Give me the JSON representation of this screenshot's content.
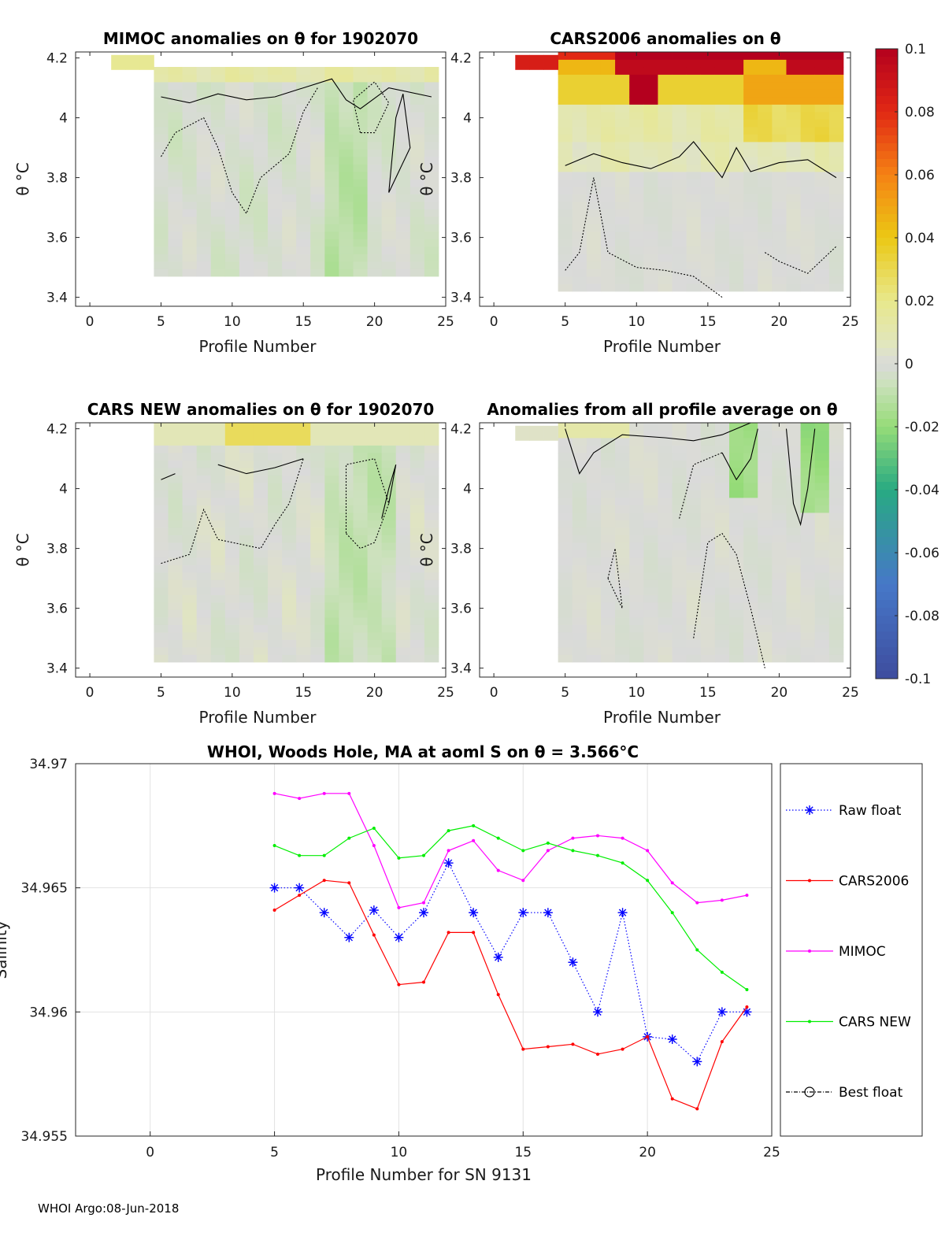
{
  "footer": "WHOI Argo:08-Jun-2018",
  "colorbar": {
    "ticks": [
      "0.1",
      "0.08",
      "0.06",
      "0.04",
      "0.02",
      "0",
      "-0.02",
      "-0.04",
      "-0.06",
      "-0.08",
      "-0.1"
    ],
    "range": [
      -0.1,
      0.1
    ]
  },
  "chart_data": [
    {
      "id": "mimoc",
      "type": "heatmap",
      "title": "MIMOC anomalies on θ  for 1902070",
      "xlabel": "Profile Number",
      "ylabel": "θ °C",
      "xlim": [
        -1,
        25
      ],
      "ylim": [
        3.37,
        4.22
      ],
      "xticks": [
        "0",
        "5",
        "10",
        "15",
        "20",
        "25"
      ],
      "yticks": [
        "3.4",
        "3.6",
        "3.8",
        "4",
        "4.2"
      ],
      "profiles": [
        5,
        24
      ],
      "theta_range": [
        3.47,
        4.15
      ]
    },
    {
      "id": "cars2006",
      "type": "heatmap",
      "title": "CARS2006 anomalies on θ",
      "xlabel": "Profile Number",
      "ylabel": "θ °C",
      "xlim": [
        -1,
        25
      ],
      "ylim": [
        3.37,
        4.22
      ],
      "xticks": [
        "0",
        "5",
        "10",
        "15",
        "20",
        "25"
      ],
      "yticks": [
        "3.4",
        "3.6",
        "3.8",
        "4",
        "4.2"
      ],
      "profiles": [
        5,
        24
      ],
      "theta_range": [
        3.42,
        4.2
      ]
    },
    {
      "id": "carsnew",
      "type": "heatmap",
      "title": "CARS NEW anomalies on θ for 1902070",
      "xlabel": "Profile Number",
      "ylabel": "θ °C",
      "xlim": [
        -1,
        25
      ],
      "ylim": [
        3.37,
        4.22
      ],
      "xticks": [
        "0",
        "5",
        "10",
        "15",
        "20",
        "25"
      ],
      "yticks": [
        "3.4",
        "3.6",
        "3.8",
        "4",
        "4.2"
      ],
      "profiles": [
        5,
        24
      ],
      "theta_range": [
        3.42,
        4.2
      ]
    },
    {
      "id": "allprofile",
      "type": "heatmap",
      "title": "Anomalies from all profile average on θ",
      "xlabel": "Profile Number",
      "ylabel": "θ °C",
      "xlim": [
        -1,
        25
      ],
      "ylim": [
        3.37,
        4.22
      ],
      "xticks": [
        "0",
        "5",
        "10",
        "15",
        "20",
        "25"
      ],
      "yticks": [
        "3.4",
        "3.6",
        "3.8",
        "4",
        "4.2"
      ],
      "profiles": [
        5,
        24
      ],
      "theta_range": [
        3.42,
        4.2
      ]
    },
    {
      "id": "salinity",
      "type": "line",
      "title": "WHOI, Woods Hole, MA at aoml S on θ = 3.566°C",
      "xlabel": "Profile Number for SN 9131",
      "ylabel": "Salinity",
      "xlim": [
        -3,
        25
      ],
      "ylim": [
        34.955,
        34.97
      ],
      "xticks": [
        "0",
        "5",
        "10",
        "15",
        "20",
        "25"
      ],
      "yticks": [
        "34.955",
        "34.96",
        "34.965",
        "34.97"
      ],
      "x": [
        5,
        6,
        7,
        8,
        9,
        10,
        11,
        12,
        13,
        14,
        15,
        16,
        17,
        18,
        19,
        20,
        21,
        22,
        23,
        24
      ],
      "series": [
        {
          "name": "Raw float",
          "color": "#0000ff",
          "style": "dotted",
          "marker": "asterisk",
          "values": [
            34.965,
            34.965,
            34.964,
            34.963,
            34.9641,
            34.963,
            34.964,
            34.966,
            34.964,
            34.9622,
            34.964,
            34.964,
            34.962,
            34.96,
            34.964,
            34.959,
            34.9589,
            34.958,
            34.96,
            34.96
          ]
        },
        {
          "name": "CARS2006",
          "color": "#ff0000",
          "style": "solid",
          "marker": "dot",
          "values": [
            34.9641,
            34.9647,
            34.9653,
            34.9652,
            34.9631,
            34.9611,
            34.9612,
            34.9632,
            34.9632,
            34.9607,
            34.9585,
            34.9586,
            34.9587,
            34.9583,
            34.9585,
            34.959,
            34.9565,
            34.9561,
            34.9588,
            34.9602
          ]
        },
        {
          "name": "MIMOC",
          "color": "#ff00ff",
          "style": "solid",
          "marker": "dot",
          "values": [
            34.9688,
            34.9686,
            34.9688,
            34.9688,
            34.9667,
            34.9642,
            34.9644,
            34.9665,
            34.9669,
            34.9657,
            34.9653,
            34.9665,
            34.967,
            34.9671,
            34.967,
            34.9665,
            34.9652,
            34.9644,
            34.9645,
            34.9647
          ]
        },
        {
          "name": "CARS NEW",
          "color": "#00ee00",
          "style": "solid",
          "marker": "dot",
          "values": [
            34.9667,
            34.9663,
            34.9663,
            34.967,
            34.9674,
            34.9662,
            34.9663,
            34.9673,
            34.9675,
            34.967,
            34.9665,
            34.9668,
            34.9665,
            34.9663,
            34.966,
            34.9653,
            34.964,
            34.9625,
            34.9616,
            34.9609
          ]
        }
      ],
      "legend": [
        "Raw float",
        "CARS2006",
        "MIMOC",
        "CARS NEW",
        "Best float"
      ]
    }
  ]
}
